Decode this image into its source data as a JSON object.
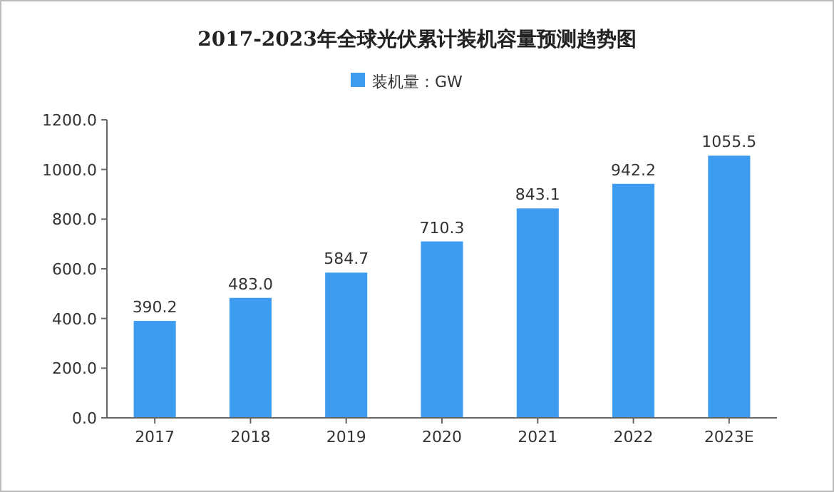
{
  "chart_data": {
    "type": "bar",
    "title": "2017-2023年全球光伏累计装机容量预测趋势图",
    "categories": [
      "2017",
      "2018",
      "2019",
      "2020",
      "2021",
      "2022",
      "2023E"
    ],
    "series": [
      {
        "name": "装机量：GW",
        "color": "#3d9cf0",
        "values": [
          390.2,
          483.0,
          584.7,
          710.3,
          843.1,
          942.2,
          1055.5
        ]
      }
    ],
    "value_labels": [
      "390.2",
      "483.0",
      "584.7",
      "710.3",
      "843.1",
      "942.2",
      "1055.5"
    ],
    "ylim": [
      0,
      1200
    ],
    "yticks": [
      {
        "value": 0,
        "label": "0.0"
      },
      {
        "value": 200,
        "label": "200.0"
      },
      {
        "value": 400,
        "label": "400.0"
      },
      {
        "value": 600,
        "label": "600.0"
      },
      {
        "value": 800,
        "label": "800.0"
      },
      {
        "value": 1000,
        "label": "1000.0"
      },
      {
        "value": 1200,
        "label": "1200.0"
      }
    ],
    "legend": "top"
  }
}
